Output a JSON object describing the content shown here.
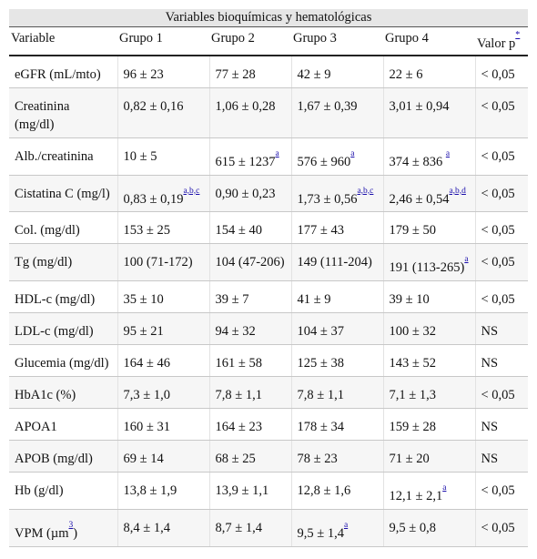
{
  "caption": "Variables bioquímicas y hematológicas",
  "headers": [
    "Variable",
    "Grupo 1",
    "Grupo 2",
    "Grupo 3",
    "Grupo 4",
    "Valor p"
  ],
  "header_p_note": "*",
  "rows": [
    {
      "variable": "eGFR (mL/mto)",
      "g1": "96 ± 23",
      "g2": "77 ± 28",
      "g3": "42 ± 9",
      "g4": "22 ± 6",
      "p": "< 0,05"
    },
    {
      "variable": "Creatinina (mg/dl)",
      "g1": "0,82 ± 0,16",
      "g2": "1,06 ± 0,28",
      "g3": "1,67 ± 0,39",
      "g4": "3,01 ± 0,94",
      "p": "< 0,05"
    },
    {
      "variable": "Alb./creatinina",
      "g1": "10 ± 5",
      "g2": "615 ± 1237",
      "g2_note": "a",
      "g3": "576 ± 960",
      "g3_note": "a",
      "g4": "374 ± 836 ",
      "g4_note": "a",
      "p": "< 0,05"
    },
    {
      "variable": "Cistatina C (mg/l)",
      "g1": "0,83 ± 0,19",
      "g1_note": "a,b,c",
      "g2": "0,90 ± 0,23",
      "g3": "1,73 ± 0,56",
      "g3_note": "a,b,c",
      "g4": "2,46 ± 0,54",
      "g4_note": "a,b,d",
      "p": "< 0,05"
    },
    {
      "variable": "Col. (mg/dl)",
      "g1": "153 ± 25",
      "g2": "154 ± 40",
      "g3": "177 ± 43",
      "g4": "179 ± 50",
      "p": "< 0,05"
    },
    {
      "variable": "Tg (mg/dl)",
      "g1": "100 (71-172)",
      "g2": "104 (47-206)",
      "g3": "149 (111-204)",
      "g4": "191 (113-265)",
      "g4_note": "a",
      "p": "< 0,05"
    },
    {
      "variable": "HDL-c (mg/dl)",
      "g1": "35 ± 10",
      "g2": "39 ± 7",
      "g3": "41 ± 9",
      "g4": "39 ± 10",
      "p": "< 0,05"
    },
    {
      "variable": "LDL-c (mg/dl)",
      "g1": "95 ± 21",
      "g2": "94 ± 32",
      "g3": "104 ± 37",
      "g4": "100 ± 32",
      "p": "NS"
    },
    {
      "variable": "Glucemia (mg/dl)",
      "g1": "164 ± 46",
      "g2": "161 ± 58",
      "g3": "125 ± 38",
      "g4": "143 ± 52",
      "p": "NS"
    },
    {
      "variable": "HbA1c (%)",
      "g1": "7,3 ± 1,0",
      "g2": "7,8 ± 1,1",
      "g3": "7,8 ± 1,1",
      "g4": "7,1 ± 1,3",
      "p": "< 0,05"
    },
    {
      "variable": "APOA1",
      "g1": "160 ± 31",
      "g2": "164 ± 23",
      "g3": "178 ± 34",
      "g4": "159 ± 28",
      "p": "NS"
    },
    {
      "variable": "APOB (mg/dl)",
      "g1": "69 ± 14",
      "g2": "68 ± 25",
      "g3": "78 ± 23",
      "g4": "71 ± 20",
      "p": "NS"
    },
    {
      "variable": "Hb (g/dl)",
      "g1": "13,8 ± 1,9",
      "g2": "13,9 ± 1,1",
      "g3": "12,8 ± 1,6",
      "g4": "12,1 ± 2,1",
      "g4_note": "a",
      "p": "< 0,05"
    },
    {
      "variable": "VPM (µm",
      "variable_note": "3",
      "variable_suffix": ")",
      "g1": "8,4 ± 1,4",
      "g2": "8,7 ± 1,4",
      "g3": "9,5 ± 1,4",
      "g3_note": "a",
      "g4": "9,5 ± 0,8",
      "p": "< 0,05"
    }
  ]
}
